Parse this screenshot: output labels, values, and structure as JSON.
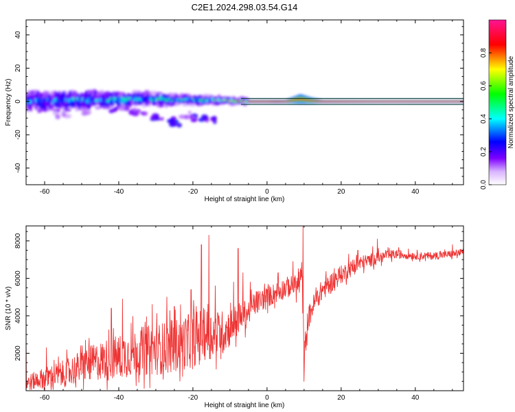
{
  "figure": {
    "title": "C2E1.2024.298.03.54.G14"
  },
  "colors": {
    "series": "#ee3333",
    "frame": "#000000",
    "background": "#ffffff"
  },
  "chart_data": [
    {
      "type": "heatmap",
      "xlabel": "Height of straight line (km)",
      "ylabel": "Frequency (Hz)",
      "xlim": [
        -65,
        53
      ],
      "ylim": [
        -50,
        49
      ],
      "xticks": [
        -60,
        -40,
        -20,
        0,
        20,
        40
      ],
      "yticks": [
        -40,
        -20,
        0,
        20,
        40
      ],
      "colorbar": {
        "label": "Normalized spectral amplitude",
        "range": [
          0,
          1
        ],
        "ticks": [
          0.0,
          0.2,
          0.4,
          0.6,
          0.8
        ],
        "colormap": [
          "#ffffff",
          "#7d00ff",
          "#0000ff",
          "#00ffff",
          "#00ff00",
          "#ffff00",
          "#ff0000",
          "#ff1493"
        ]
      },
      "ridge": {
        "x": [
          -65,
          -60,
          -55,
          -50,
          -45,
          -40,
          -35,
          -30,
          -25,
          -20,
          -15,
          -10,
          -5,
          0,
          5,
          9,
          12,
          15,
          20,
          30,
          40,
          53
        ],
        "frequency": [
          0,
          0,
          0.5,
          0.5,
          1,
          1,
          1.5,
          1.5,
          1,
          1,
          1,
          0.5,
          0,
          0,
          0,
          1.5,
          0.5,
          0,
          0,
          0,
          0,
          0
        ],
        "amplitude": [
          0.3,
          0.35,
          0.35,
          0.35,
          0.35,
          0.45,
          0.4,
          0.45,
          0.45,
          0.4,
          0.5,
          0.6,
          0.9,
          0.9,
          0.8,
          0.85,
          0.85,
          0.9,
          0.92,
          0.95,
          0.95,
          0.95
        ],
        "spread": [
          4.5,
          5,
          4.5,
          4.5,
          4,
          3.5,
          3.5,
          3,
          2.5,
          2.5,
          2,
          1.5,
          1.2,
          1.2,
          1.2,
          3,
          2,
          1.2,
          1.2,
          1.2,
          1.2,
          1.2
        ]
      },
      "lower_scatter": {
        "x": [
          -40,
          -35,
          -30,
          -27,
          -25,
          -18,
          -16,
          -22,
          -55,
          -50
        ],
        "frequency": [
          -5,
          -6,
          -10,
          -11,
          -13,
          -10,
          -11,
          -8,
          -8,
          -6
        ],
        "amplitude": [
          0.15,
          0.18,
          0.2,
          0.22,
          0.25,
          0.22,
          0.2,
          0.12,
          0.1,
          0.1
        ]
      }
    },
    {
      "type": "line",
      "xlabel": "Height of straight line (km)",
      "ylabel": "SNR (10 * v/v)",
      "xlim": [
        -65,
        53
      ],
      "ylim": [
        0,
        8800
      ],
      "xticks": [
        -60,
        -40,
        -20,
        0,
        20,
        40
      ],
      "yticks": [
        2000,
        4000,
        6000,
        8000
      ],
      "series": [
        {
          "x": [
            -65,
            -60,
            -55,
            -50,
            -45,
            -40,
            -35,
            -30,
            -25,
            -20,
            -17.5,
            -15,
            -12,
            -10,
            -7,
            -5,
            -3,
            0,
            3,
            5,
            7,
            8,
            9.5,
            10,
            11,
            13,
            15,
            18,
            20,
            25,
            30,
            35,
            40,
            45,
            50,
            53
          ],
          "values": [
            400,
            700,
            900,
            1300,
            1600,
            1800,
            2100,
            2200,
            2400,
            2700,
            3000,
            3000,
            3100,
            3400,
            3900,
            4200,
            4700,
            5000,
            5300,
            5500,
            5600,
            5600,
            6000,
            1800,
            3800,
            4800,
            5400,
            5900,
            6200,
            6800,
            7100,
            7300,
            7200,
            7200,
            7300,
            7400
          ],
          "noise": [
            500,
            700,
            900,
            1100,
            1300,
            1500,
            1600,
            1700,
            1800,
            1800,
            1800,
            1600,
            1500,
            1300,
            1100,
            900,
            800,
            700,
            700,
            700,
            700,
            700,
            1400,
            900,
            800,
            700,
            700,
            650,
            600,
            500,
            400,
            300,
            250,
            250,
            250,
            250
          ],
          "spikes": [
            [
              -65,
              2700
            ],
            [
              -59.5,
              2300
            ],
            [
              -49,
              2700
            ],
            [
              -48,
              2800
            ],
            [
              -42,
              4400
            ],
            [
              -39,
              4900
            ],
            [
              -31,
              4600
            ],
            [
              -27,
              5000
            ],
            [
              -25,
              4500
            ],
            [
              -20.5,
              5400
            ],
            [
              -17.7,
              7800
            ],
            [
              -15.7,
              8300
            ],
            [
              -14,
              5600
            ],
            [
              -13,
              4000
            ],
            [
              -9,
              5800
            ],
            [
              -7.8,
              7600
            ],
            [
              -6.5,
              6300
            ],
            [
              -4.5,
              5800
            ],
            [
              3,
              6300
            ],
            [
              7,
              6900
            ],
            [
              9.7,
              8800
            ],
            [
              10,
              500
            ],
            [
              22,
              7300
            ],
            [
              24.5,
              7500
            ],
            [
              28.5,
              7700
            ],
            [
              29.8,
              8100
            ],
            [
              32,
              7500
            ],
            [
              50,
              7800
            ]
          ]
        }
      ]
    }
  ]
}
